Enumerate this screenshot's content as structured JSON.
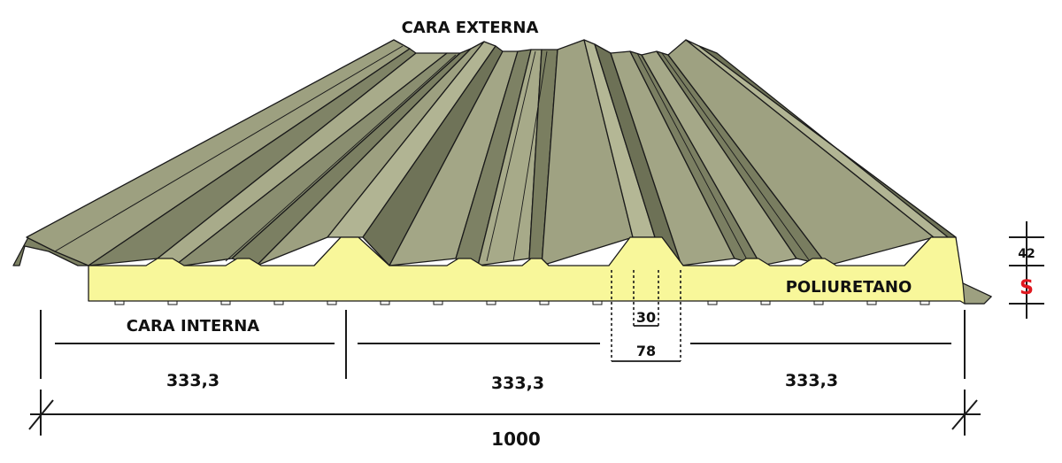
{
  "labels": {
    "external_face": "CARA EXTERNA",
    "internal_face": "CARA INTERNA",
    "core": "POLIURETANO"
  },
  "dimensions": {
    "section_1": "333,3",
    "section_2": "333,3",
    "section_3": "333,3",
    "total_width": "1000",
    "crest_top": "30",
    "crest_base": "78",
    "rib_height": "42",
    "thickness": "S"
  },
  "colors": {
    "sheet": "#9da080",
    "sheet_dark": "#6f7358",
    "sheet_light": "#b3b694",
    "foam": "#f8f79a",
    "outline": "#1a1a1a",
    "thickness_label": "#e0181f"
  }
}
